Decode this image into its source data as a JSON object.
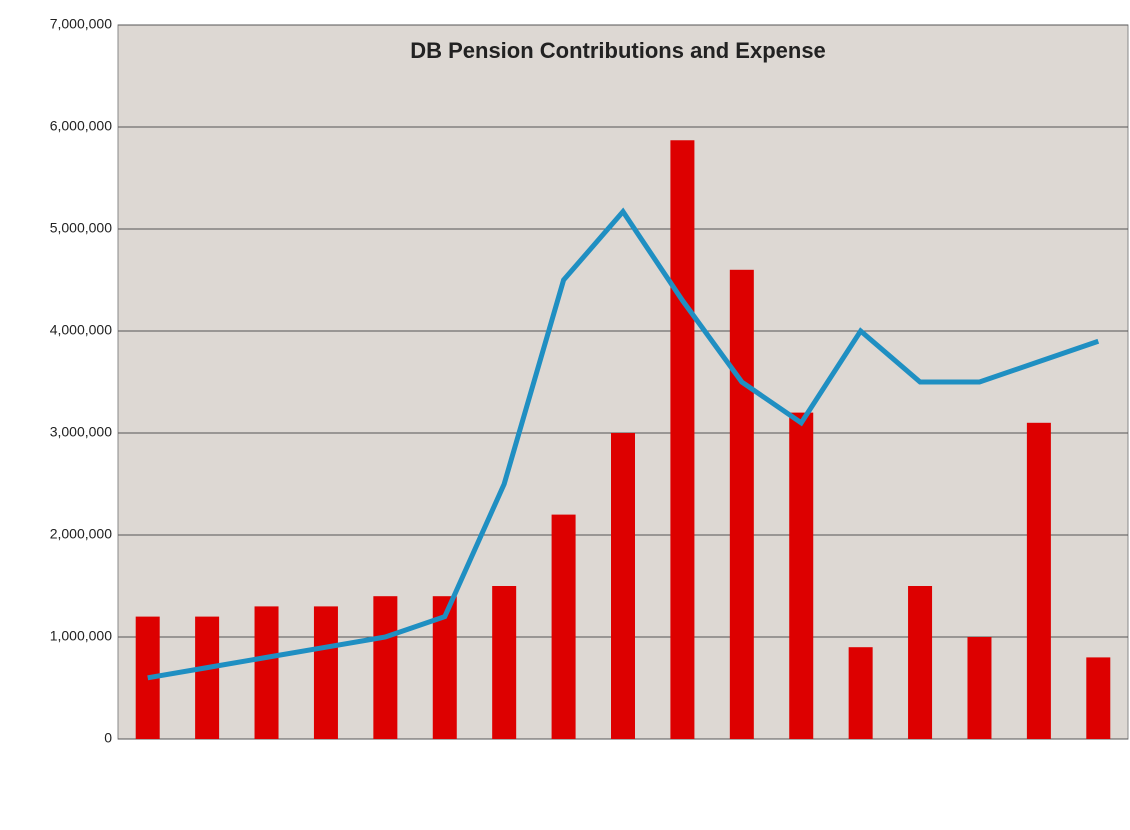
{
  "chart_data": {
    "type": "bar-line",
    "title": "DB Pension Contributions and Expense",
    "categories": [
      null,
      null,
      null,
      null,
      null,
      null,
      null,
      null,
      null,
      null,
      null,
      null,
      null,
      null,
      null,
      null,
      null
    ],
    "series": [
      {
        "type": "bar",
        "color": "#dd0000",
        "values": [
          1200000,
          1200000,
          1300000,
          1300000,
          1400000,
          1400000,
          1500000,
          2200000,
          3000000,
          5870000,
          4600000,
          3200000,
          900000,
          1500000,
          1000000,
          3100000,
          800000
        ]
      },
      {
        "type": "line",
        "color": "#1f8fc2",
        "values": [
          600000,
          700000,
          800000,
          900000,
          1000000,
          1200000,
          2500000,
          4500000,
          5170000,
          4300000,
          3500000,
          3100000,
          4000000,
          3500000,
          3500000,
          3700000,
          3900000
        ]
      }
    ],
    "ylim": [
      0,
      7000000
    ],
    "yticks": [
      0,
      {
        "value": 1000000,
        "label": "1,000,000"
      },
      {
        "value": 2000000,
        "label": "2,000,000"
      },
      {
        "value": 3000000,
        "label": "3,000,000"
      },
      {
        "value": 4000000,
        "label": "4,000,000"
      },
      {
        "value": 5000000,
        "label": "5,000,000"
      },
      {
        "value": 6000000,
        "label": "6,000,000"
      },
      {
        "value": 7000000,
        "label": "7,000,000"
      }
    ],
    "grid": true
  }
}
